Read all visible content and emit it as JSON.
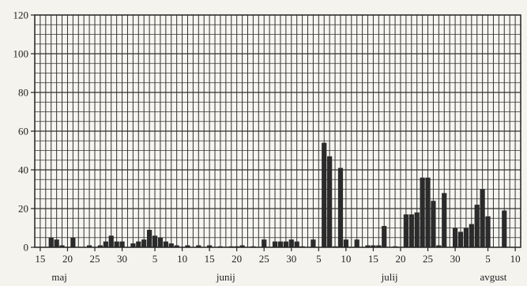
{
  "chart_data": {
    "type": "bar",
    "title": "",
    "xlabel": "",
    "ylabel": "",
    "ylim": [
      0,
      120
    ],
    "y_ticks": [
      "0",
      "20",
      "40",
      "60",
      "80",
      "100",
      "120"
    ],
    "grid": true,
    "bar_color": "#2b2b2b",
    "x_tick_labels": [
      {
        "day": 15,
        "label": "15"
      },
      {
        "day": 20,
        "label": "20"
      },
      {
        "day": 25,
        "label": "25"
      },
      {
        "day": 30,
        "label": "30"
      },
      {
        "day": 36,
        "label": "5"
      },
      {
        "day": 41,
        "label": "10"
      },
      {
        "day": 46,
        "label": "15"
      },
      {
        "day": 51,
        "label": "20"
      },
      {
        "day": 56,
        "label": "25"
      },
      {
        "day": 61,
        "label": "30"
      },
      {
        "day": 66,
        "label": "5"
      },
      {
        "day": 71,
        "label": "10"
      },
      {
        "day": 76,
        "label": "15"
      },
      {
        "day": 81,
        "label": "20"
      },
      {
        "day": 86,
        "label": "25"
      },
      {
        "day": 91,
        "label": "30"
      },
      {
        "day": 97,
        "label": "5"
      },
      {
        "day": 102,
        "label": "10"
      }
    ],
    "month_labels": [
      {
        "day": 18.5,
        "label": "maj"
      },
      {
        "day": 49,
        "label": "junij"
      },
      {
        "day": 79,
        "label": "julij"
      },
      {
        "day": 98,
        "label": "avgust"
      }
    ],
    "x_range": [
      14,
      103
    ],
    "series": [
      {
        "x": [
          17,
          18,
          19,
          21,
          24,
          26,
          27,
          28,
          29,
          30,
          32,
          33,
          34,
          35,
          36,
          37,
          38,
          39,
          40,
          42,
          44,
          46,
          48,
          50,
          51,
          52,
          54,
          56,
          58,
          59,
          60,
          61,
          62,
          63,
          65,
          67,
          68,
          69,
          70,
          71,
          73,
          75,
          76,
          77,
          78,
          80,
          82,
          83,
          84,
          85,
          86,
          87,
          88,
          89,
          91,
          92,
          93,
          94,
          95,
          96,
          97,
          100
        ],
        "y": [
          5,
          4,
          1,
          5,
          1,
          1,
          3,
          6,
          3,
          3,
          2,
          3,
          4,
          9,
          6,
          5,
          3,
          2,
          1,
          1,
          1,
          1,
          0.5,
          0.5,
          0.5,
          1,
          0.5,
          4,
          3,
          3,
          3,
          4,
          3,
          0.5,
          4,
          54,
          47,
          0.5,
          41,
          4,
          4,
          1,
          1,
          1,
          11,
          0.5,
          17,
          17,
          18,
          36,
          36,
          24,
          1,
          28,
          10,
          8,
          10,
          12,
          22,
          30,
          16,
          19
        ]
      }
    ]
  }
}
